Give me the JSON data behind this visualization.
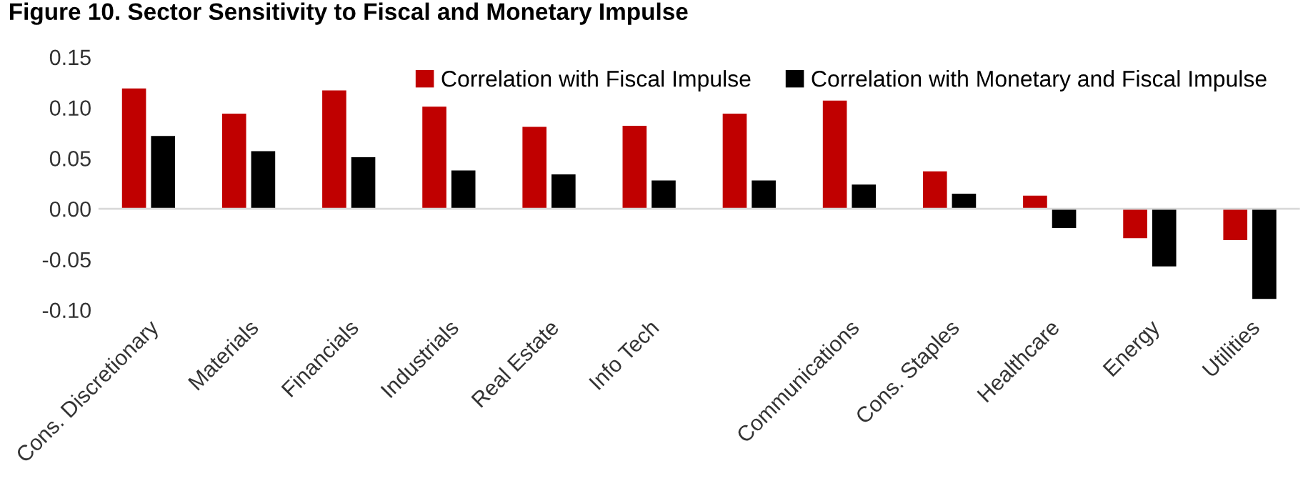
{
  "chart_data": {
    "type": "bar",
    "title": "Figure 10. Sector Sensitivity to Fiscal and Monetary Impulse",
    "categories": [
      "Cons. Discretionary",
      "Materials",
      "Financials",
      "Industrials",
      "Real Estate",
      "Info Tech",
      null,
      "Communications",
      "Cons. Staples",
      "Healthcare",
      "Energy",
      "Utilities"
    ],
    "series": [
      {
        "name": "Correlation with Fiscal Impulse",
        "color": "#c00000",
        "values": [
          0.119,
          0.094,
          0.117,
          0.101,
          0.081,
          0.082,
          0.094,
          0.107,
          0.037,
          0.013,
          -0.029,
          -0.031
        ]
      },
      {
        "name": "Correlation with Monetary and Fiscal Impulse",
        "color": "#000000",
        "values": [
          0.072,
          0.057,
          0.051,
          0.038,
          0.034,
          0.028,
          0.028,
          0.024,
          0.015,
          -0.019,
          -0.057,
          -0.089
        ]
      }
    ],
    "ylim": [
      -0.1,
      0.15
    ],
    "yticks": [
      {
        "value": -0.1,
        "label": "-0.10"
      },
      {
        "value": -0.05,
        "label": "-0.05"
      },
      {
        "value": 0,
        "label": "0.00"
      },
      {
        "value": 0.05,
        "label": "0.05"
      },
      {
        "value": 0.1,
        "label": "0.10"
      },
      {
        "value": 0.15,
        "label": "0.15"
      }
    ],
    "ref_lines": [
      {
        "axis": "y",
        "value": 0,
        "color": "#d9d9d9"
      }
    ],
    "legend": "top right",
    "grid": false
  }
}
